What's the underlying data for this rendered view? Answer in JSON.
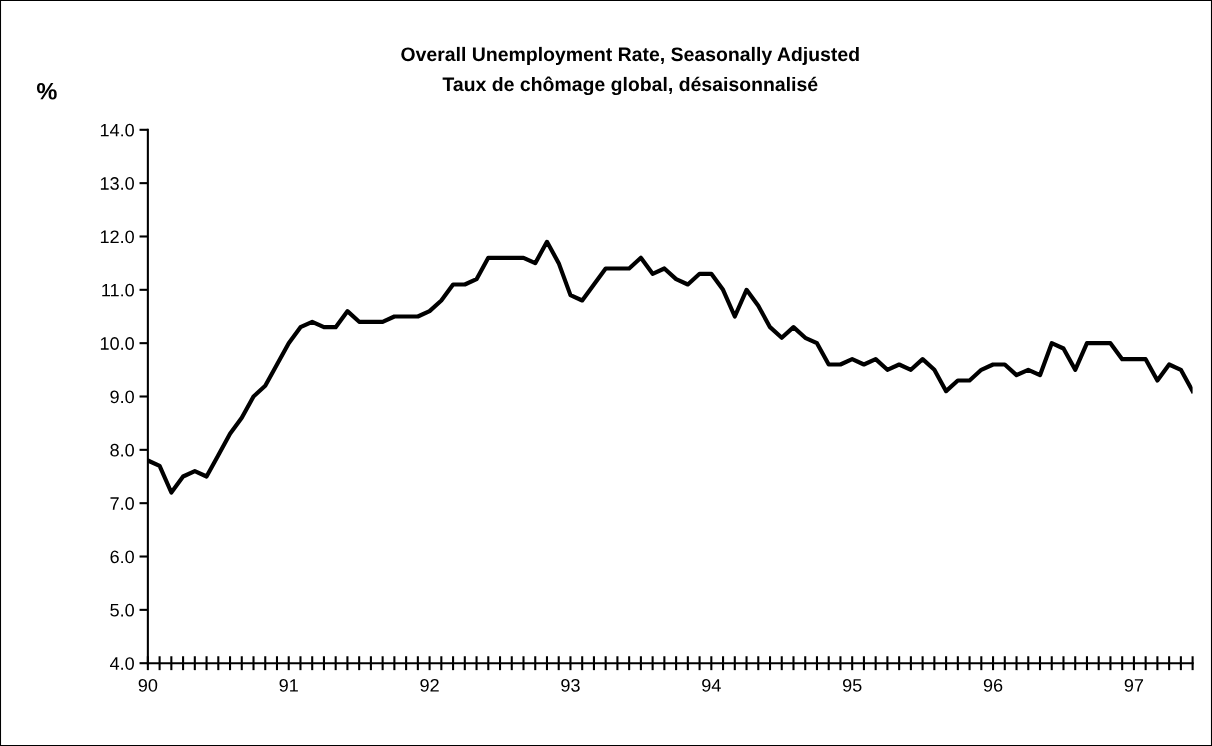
{
  "chart_data": {
    "type": "line",
    "title": "Overall Unemployment Rate, Seasonally Adjusted",
    "subtitle": "Taux de chômage global, désaisonnalisé",
    "ylabel": "%",
    "categories": [
      "90",
      null,
      null,
      null,
      null,
      null,
      null,
      null,
      null,
      null,
      null,
      null,
      "91",
      null,
      null,
      null,
      null,
      null,
      null,
      null,
      null,
      null,
      null,
      null,
      "92",
      null,
      null,
      null,
      null,
      null,
      null,
      null,
      null,
      null,
      null,
      null,
      "93",
      null,
      null,
      null,
      null,
      null,
      null,
      null,
      null,
      null,
      null,
      null,
      "94",
      null,
      null,
      null,
      null,
      null,
      null,
      null,
      null,
      null,
      null,
      null,
      "95",
      null,
      null,
      null,
      null,
      null,
      null,
      null,
      null,
      null,
      null,
      null,
      "96",
      null,
      null,
      null,
      null,
      null,
      null,
      null,
      null,
      null,
      null,
      null,
      "97",
      null,
      null,
      null,
      null,
      null
    ],
    "series": [
      {
        "color": "#000000",
        "values": [
          7.8,
          7.7,
          7.2,
          7.5,
          7.6,
          7.5,
          7.9,
          8.3,
          8.6,
          9.0,
          9.2,
          9.6,
          10.0,
          10.3,
          10.4,
          10.3,
          10.3,
          10.6,
          10.4,
          10.4,
          10.4,
          10.5,
          10.5,
          10.5,
          10.6,
          10.8,
          11.1,
          11.1,
          11.2,
          11.6,
          11.6,
          11.6,
          11.6,
          11.5,
          11.9,
          11.5,
          10.9,
          10.8,
          11.1,
          11.4,
          11.4,
          11.4,
          11.6,
          11.3,
          11.4,
          11.2,
          11.1,
          11.3,
          11.3,
          11.0,
          10.5,
          11.0,
          10.7,
          10.3,
          10.1,
          10.3,
          10.1,
          10.0,
          9.6,
          9.6,
          9.7,
          9.6,
          9.7,
          9.5,
          9.6,
          9.5,
          9.7,
          9.5,
          9.1,
          9.3,
          9.3,
          9.5,
          9.6,
          9.6,
          9.4,
          9.5,
          9.4,
          10.0,
          9.9,
          9.5,
          10.0,
          10.0,
          10.0,
          9.7,
          9.7,
          9.7,
          9.3,
          9.6,
          9.5,
          9.1
        ]
      }
    ],
    "ylim": [
      4.0,
      14.0
    ],
    "yticks": [
      {
        "value": 4,
        "label": "4.0"
      },
      {
        "value": 5,
        "label": "5.0"
      },
      {
        "value": 6,
        "label": "6.0"
      },
      {
        "value": 7,
        "label": "7.0"
      },
      {
        "value": 8,
        "label": "8.0"
      },
      {
        "value": 9,
        "label": "9.0"
      },
      {
        "value": 10,
        "label": "10.0"
      },
      {
        "value": 11,
        "label": "11.0"
      },
      {
        "value": 12,
        "label": "12.0"
      },
      {
        "value": 13,
        "label": "13.0"
      },
      {
        "value": 14,
        "label": "14.0"
      }
    ],
    "grid": false,
    "legend": false,
    "marker": "none",
    "line_style": "solid"
  }
}
